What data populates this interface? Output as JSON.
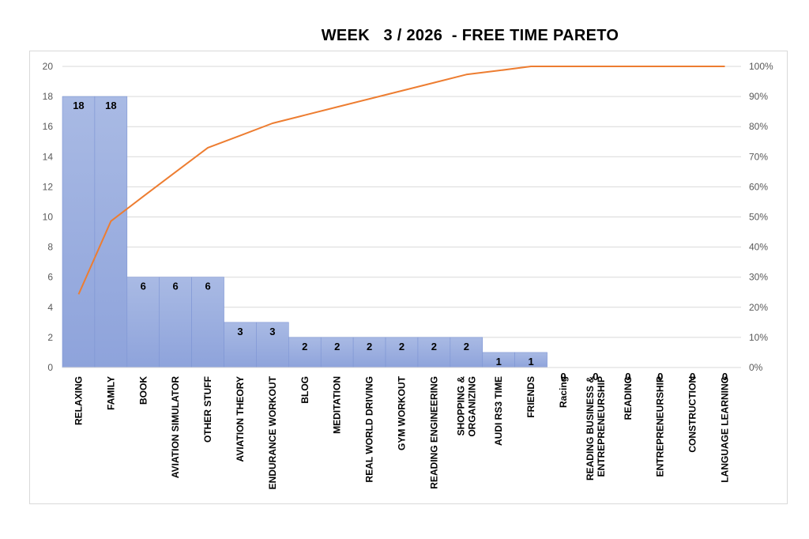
{
  "chart_data": {
    "type": "bar",
    "title": "WEEK   3 / 2026  - FREE TIME PARETO",
    "categories": [
      "RELAXING",
      "FAMILY",
      "BOOK",
      "AVIATION SIMULATOR",
      "OTHER STUFF",
      "AVIATION THEORY",
      "ENDURANCE WORKOUT",
      "BLOG",
      "MEDITATION",
      "REAL WORLD DRIVING",
      "GYM WORKOUT",
      "READING ENGINEERING",
      "SHOPPING & ORGANIZING",
      "AUDI RS3 TIME",
      "FRIENDS",
      "Racing",
      "READING BUSINESS & ENTREPRENEURSHIP",
      "READING",
      "ENTREPRENEURSHIP",
      "CONSTRUCTION",
      "LANGUAGE LEARNING"
    ],
    "series": [
      {
        "type": "bar",
        "values": [
          18,
          18,
          6,
          6,
          6,
          3,
          3,
          2,
          2,
          2,
          2,
          2,
          2,
          1,
          1,
          0,
          0,
          0,
          0,
          0,
          0
        ]
      },
      {
        "type": "line",
        "axis": "secondary",
        "values": [
          24.3,
          48.6,
          56.8,
          64.9,
          73.0,
          77.0,
          81.1,
          83.8,
          86.5,
          89.2,
          91.9,
          94.6,
          97.3,
          98.6,
          100,
          100,
          100,
          100,
          100,
          100,
          100
        ]
      }
    ],
    "ylim": [
      0,
      20
    ],
    "yticks": [
      "0",
      "2",
      "4",
      "6",
      "8",
      "10",
      "12",
      "14",
      "16",
      "18",
      "20"
    ],
    "y2lim": [
      0,
      100
    ],
    "y2ticks": [
      "0%",
      "10%",
      "20%",
      "30%",
      "40%",
      "50%",
      "60%",
      "70%",
      "80%",
      "90%",
      "100%"
    ],
    "grid": true,
    "legend": "none",
    "colors": {
      "bar": "#8EA3DB",
      "bar_top": "#A9BAE4",
      "bar_border": "#7E95D4",
      "line": "#ED7D31",
      "grid": "#d9d9d9"
    }
  }
}
